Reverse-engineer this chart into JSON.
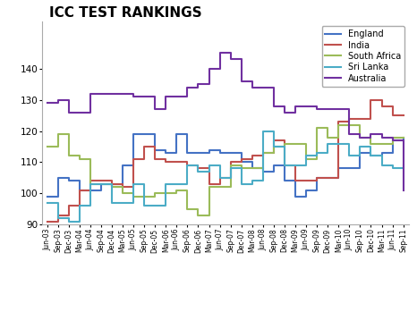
{
  "title": "ICC TEST RANKINGS",
  "title_fontsize": 11,
  "ylabel_min": 90,
  "ylabel_max": 150,
  "yticks": [
    90,
    100,
    110,
    120,
    130,
    140
  ],
  "xtick_labels": [
    "Jun-03",
    "Sep-03",
    "Dec-03",
    "Mar-04",
    "Jun-04",
    "Sep-04",
    "Dec-04",
    "Mar-05",
    "Jun-05",
    "Sep-05",
    "Dec-05",
    "Mar-06",
    "Jun-06",
    "Sep-06",
    "Dec-06",
    "Mar-07",
    "Jun-07",
    "Sep-07",
    "Dec-07",
    "Mar-08",
    "Jun-08",
    "Sep-08",
    "Dec-08",
    "Mar-09",
    "Jun-09",
    "Sep-09",
    "Dec-09",
    "Mar-10",
    "Jun-10",
    "Sep-10",
    "Dec-10",
    "Mar-11",
    "Jun-11",
    "Sep-11"
  ],
  "series": {
    "England": {
      "color": "#4472C4",
      "values": [
        99,
        105,
        104,
        101,
        101,
        103,
        102,
        109,
        119,
        119,
        114,
        113,
        119,
        113,
        113,
        114,
        113,
        113,
        110,
        108,
        107,
        109,
        104,
        99,
        101,
        105,
        105,
        108,
        108,
        113,
        112,
        113,
        117,
        118
      ]
    },
    "India": {
      "color": "#C0504D",
      "values": [
        91,
        93,
        96,
        101,
        104,
        104,
        103,
        102,
        111,
        115,
        111,
        110,
        110,
        109,
        108,
        103,
        105,
        110,
        111,
        112,
        113,
        117,
        109,
        104,
        104,
        105,
        105,
        123,
        124,
        124,
        130,
        128,
        125,
        125
      ]
    },
    "South Africa": {
      "color": "#9BBB59",
      "values": [
        115,
        119,
        112,
        111,
        103,
        103,
        102,
        100,
        99,
        99,
        100,
        100,
        101,
        95,
        93,
        102,
        102,
        109,
        108,
        108,
        113,
        115,
        116,
        116,
        111,
        121,
        118,
        122,
        122,
        118,
        116,
        116,
        118,
        118
      ]
    },
    "Sri Lanka": {
      "color": "#4BACC6",
      "values": [
        97,
        92,
        91,
        96,
        103,
        103,
        97,
        97,
        103,
        96,
        96,
        103,
        103,
        109,
        107,
        109,
        105,
        108,
        103,
        104,
        120,
        115,
        109,
        109,
        112,
        113,
        116,
        116,
        112,
        115,
        112,
        109,
        108,
        109
      ]
    },
    "Australia": {
      "color": "#7030A0",
      "values": [
        129,
        130,
        126,
        126,
        132,
        132,
        132,
        132,
        131,
        131,
        127,
        131,
        131,
        134,
        135,
        140,
        145,
        143,
        136,
        134,
        134,
        128,
        126,
        128,
        128,
        127,
        127,
        127,
        119,
        118,
        119,
        118,
        117,
        101
      ]
    }
  },
  "legend_order": [
    "England",
    "India",
    "South Africa",
    "Sri Lanka",
    "Australia"
  ],
  "bg_color": "#f5f5f5"
}
